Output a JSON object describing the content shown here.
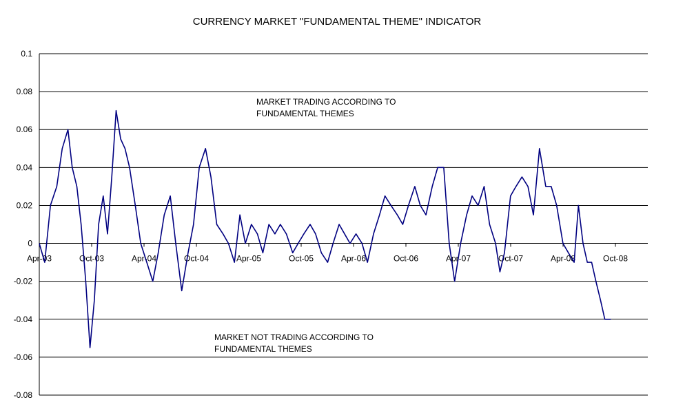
{
  "chart_data": {
    "type": "line",
    "title": "CURRENCY MARKET \"FUNDAMENTAL THEME\" INDICATOR",
    "xlabel": "",
    "ylabel": "",
    "ylim": [
      -0.08,
      0.1
    ],
    "y_ticks": [
      0.1,
      0.08,
      0.06,
      0.04,
      0.02,
      0,
      -0.02,
      -0.04,
      -0.06,
      -0.08
    ],
    "y_tick_labels": [
      "0.1",
      "0.08",
      "0.06",
      "0.04",
      "0.02",
      "0",
      "-0.02",
      "-0.04",
      "-0.06",
      "-0.08"
    ],
    "x_tick_labels": [
      "Apr-03",
      "Oct-03",
      "Apr-04",
      "Oct-04",
      "Apr-05",
      "Oct-05",
      "Apr-06",
      "Oct-06",
      "Apr-07",
      "Oct-07",
      "Apr-08",
      "Oct-08"
    ],
    "grid": "horizontal",
    "legend": "none",
    "annotations": [
      {
        "lines": [
          "MARKET TRADING ACCORDING TO",
          "FUNDAMENTAL THEMES"
        ]
      },
      {
        "lines": [
          "MARKET NOT TRADING ACCORDING TO",
          "FUNDAMENTAL THEMES"
        ]
      }
    ],
    "series": [
      {
        "color": "#000080",
        "x": [
          "2003-04-01",
          "2003-04-20",
          "2003-05-10",
          "2003-06-01",
          "2003-06-20",
          "2003-07-10",
          "2003-07-25",
          "2003-08-10",
          "2003-08-25",
          "2003-09-10",
          "2003-09-25",
          "2003-10-10",
          "2003-10-25",
          "2003-11-10",
          "2003-11-25",
          "2003-12-10",
          "2003-12-25",
          "2004-01-10",
          "2004-01-25",
          "2004-02-10",
          "2004-03-01",
          "2004-03-20",
          "2004-04-10",
          "2004-05-01",
          "2004-05-20",
          "2004-06-10",
          "2004-07-01",
          "2004-07-20",
          "2004-08-10",
          "2004-09-01",
          "2004-09-20",
          "2004-10-10",
          "2004-11-01",
          "2004-11-20",
          "2004-12-10",
          "2005-01-01",
          "2005-01-20",
          "2005-02-10",
          "2005-03-01",
          "2005-03-20",
          "2005-04-10",
          "2005-05-01",
          "2005-05-20",
          "2005-06-10",
          "2005-07-01",
          "2005-07-20",
          "2005-08-10",
          "2005-09-01",
          "2005-09-20",
          "2005-10-10",
          "2005-11-01",
          "2005-11-20",
          "2005-12-10",
          "2006-01-01",
          "2006-01-20",
          "2006-02-10",
          "2006-03-01",
          "2006-03-20",
          "2006-04-10",
          "2006-05-01",
          "2006-05-20",
          "2006-06-10",
          "2006-07-01",
          "2006-07-20",
          "2006-08-10",
          "2006-09-01",
          "2006-09-20",
          "2006-10-10",
          "2006-11-01",
          "2006-11-20",
          "2006-12-10",
          "2007-01-01",
          "2007-01-20",
          "2007-02-10",
          "2007-03-01",
          "2007-03-20",
          "2007-04-10",
          "2007-05-01",
          "2007-05-20",
          "2007-06-10",
          "2007-07-01",
          "2007-07-20",
          "2007-08-10",
          "2007-08-25",
          "2007-09-10",
          "2007-10-01",
          "2007-10-20",
          "2007-11-10",
          "2007-12-01",
          "2007-12-20",
          "2008-01-10",
          "2008-02-01",
          "2008-02-20",
          "2008-03-10",
          "2008-04-01",
          "2008-04-20",
          "2008-05-10",
          "2008-05-25",
          "2008-06-10",
          "2008-06-25",
          "2008-07-10",
          "2008-07-25",
          "2008-08-10",
          "2008-08-25",
          "2008-09-05",
          "2008-09-15"
        ],
        "values": [
          0.0,
          -0.01,
          0.02,
          0.03,
          0.05,
          0.06,
          0.04,
          0.03,
          0.01,
          -0.02,
          -0.055,
          -0.03,
          0.01,
          0.025,
          0.005,
          0.035,
          0.07,
          0.055,
          0.05,
          0.04,
          0.02,
          0.0,
          -0.01,
          -0.02,
          -0.005,
          0.015,
          0.025,
          0.0,
          -0.025,
          -0.005,
          0.01,
          0.04,
          0.05,
          0.035,
          0.01,
          0.005,
          0.0,
          -0.01,
          0.015,
          0.0,
          0.01,
          0.005,
          -0.005,
          0.01,
          0.005,
          0.01,
          0.005,
          -0.005,
          0.0,
          0.005,
          0.01,
          0.005,
          -0.005,
          -0.01,
          0.0,
          0.01,
          0.005,
          0.0,
          0.005,
          0.0,
          -0.01,
          0.005,
          0.015,
          0.025,
          0.02,
          0.015,
          0.01,
          0.02,
          0.03,
          0.02,
          0.015,
          0.03,
          0.04,
          0.04,
          0.0,
          -0.02,
          0.0,
          0.015,
          0.025,
          0.02,
          0.03,
          0.01,
          0.0,
          -0.015,
          -0.005,
          0.025,
          0.03,
          0.035,
          0.03,
          0.015,
          0.05,
          0.03,
          0.03,
          0.02,
          0.0,
          -0.005,
          -0.01,
          0.02,
          0.0,
          -0.01,
          -0.01,
          -0.02,
          -0.03,
          -0.04,
          -0.04,
          -0.04
        ]
      }
    ]
  }
}
